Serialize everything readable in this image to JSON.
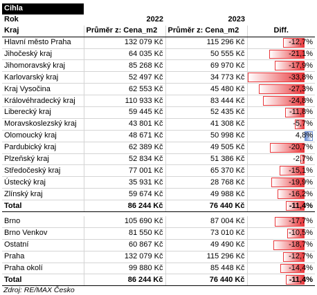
{
  "title": "Cihla",
  "header": {
    "rok_label": "Rok",
    "year1": "2022",
    "year2": "2023",
    "col_kraj": "Kraj",
    "col_avg1": "Průměr z: Cena_m2",
    "col_avg2": "Průměr z: Cena_m2",
    "col_diff": "Diff."
  },
  "regions": [
    {
      "name": "Hlavní město Praha",
      "v2022": "132 079 Kč",
      "v2023": "115 296 Kč",
      "diff": "-12,7%",
      "diff_value": -12.7
    },
    {
      "name": "Jihočeský kraj",
      "v2022": "64 035 Kč",
      "v2023": "50 555 Kč",
      "diff": "-21,1%",
      "diff_value": -21.1
    },
    {
      "name": "Jihomoravský kraj",
      "v2022": "85 268 Kč",
      "v2023": "69 970 Kč",
      "diff": "-17,9%",
      "diff_value": -17.9
    },
    {
      "name": "Karlovarský kraj",
      "v2022": "52 497 Kč",
      "v2023": "34 773 Kč",
      "diff": "-33,8%",
      "diff_value": -33.8
    },
    {
      "name": "Kraj Vysočina",
      "v2022": "62 553 Kč",
      "v2023": "45 480 Kč",
      "diff": "-27,3%",
      "diff_value": -27.3
    },
    {
      "name": "Královéhradecký kraj",
      "v2022": "110 933 Kč",
      "v2023": "83 444 Kč",
      "diff": "-24,8%",
      "diff_value": -24.8
    },
    {
      "name": "Liberecký kraj",
      "v2022": "59 445 Kč",
      "v2023": "52 435 Kč",
      "diff": "-11,8%",
      "diff_value": -11.8
    },
    {
      "name": "Moravskoslezský kraj",
      "v2022": "43 801 Kč",
      "v2023": "41 308 Kč",
      "diff": "-5,7%",
      "diff_value": -5.7
    },
    {
      "name": "Olomoucký kraj",
      "v2022": "48 671 Kč",
      "v2023": "50 998 Kč",
      "diff": "4,8%",
      "diff_value": 4.8
    },
    {
      "name": "Pardubický kraj",
      "v2022": "62 389 Kč",
      "v2023": "49 505 Kč",
      "diff": "-20,7%",
      "diff_value": -20.7
    },
    {
      "name": "Plzeňský kraj",
      "v2022": "52 834 Kč",
      "v2023": "51 386 Kč",
      "diff": "-2,7%",
      "diff_value": -2.7
    },
    {
      "name": "Středočeský kraj",
      "v2022": "77 001 Kč",
      "v2023": "65 370 Kč",
      "diff": "-15,1%",
      "diff_value": -15.1
    },
    {
      "name": "Ústecký kraj",
      "v2022": "35 931 Kč",
      "v2023": "28 768 Kč",
      "diff": "-19,9%",
      "diff_value": -19.9
    },
    {
      "name": "Zlínský kraj",
      "v2022": "59 674 Kč",
      "v2023": "49 988 Kč",
      "diff": "-16,2%",
      "diff_value": -16.2
    }
  ],
  "total1": {
    "name": "Total",
    "v2022": "86 244 Kč",
    "v2023": "76 440 Kč",
    "diff": "-11,4%",
    "diff_value": -11.4
  },
  "cities": [
    {
      "name": "Brno",
      "v2022": "105 690 Kč",
      "v2023": "87 004 Kč",
      "diff": "-17,7%",
      "diff_value": -17.7
    },
    {
      "name": "Brno Venkov",
      "v2022": "81 550 Kč",
      "v2023": "73 010 Kč",
      "diff": "-10,5%",
      "diff_value": -10.5
    },
    {
      "name": "Ostatní",
      "v2022": "60 867 Kč",
      "v2023": "49 490 Kč",
      "diff": "-18,7%",
      "diff_value": -18.7
    },
    {
      "name": "Praha",
      "v2022": "132 079 Kč",
      "v2023": "115 296 Kč",
      "diff": "-12,7%",
      "diff_value": -12.7
    },
    {
      "name": "Praha okolí",
      "v2022": "99 880 Kč",
      "v2023": "85 448 Kč",
      "diff": "-14,4%",
      "diff_value": -14.4
    }
  ],
  "total2": {
    "name": "Total",
    "v2022": "86 244 Kč",
    "v2023": "76 440 Kč",
    "diff": "-11,4%",
    "diff_value": -11.4
  },
  "source": "Zdroj: RE/MAX Česko",
  "colors": {
    "negative_bar": "#e8363a",
    "positive_bar": "#6b8fd6"
  }
}
